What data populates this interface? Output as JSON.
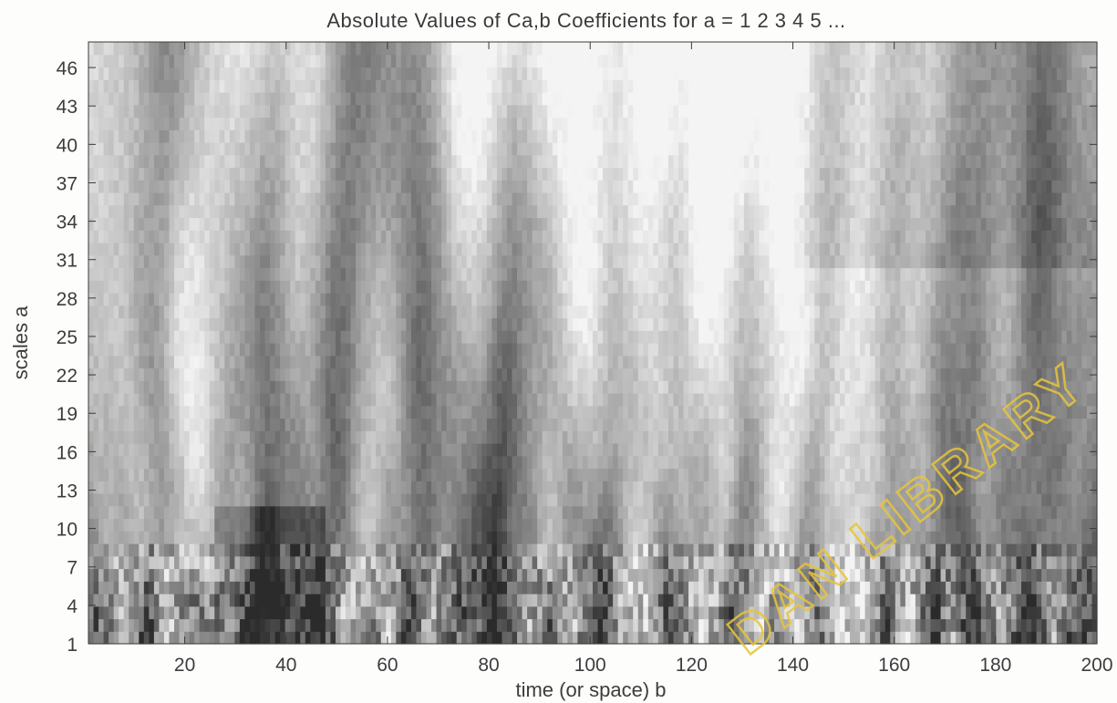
{
  "chart_data": {
    "type": "heatmap",
    "title": "Absolute Values of Ca,b Coefficients for a =  1 2 3 4 5 ...",
    "xlabel": "time (or space) b",
    "ylabel": "scales a",
    "xlim": [
      1,
      200
    ],
    "ylim": [
      1,
      48
    ],
    "x_ticks": [
      20,
      40,
      60,
      80,
      100,
      120,
      140,
      160,
      180,
      200
    ],
    "y_ticks": [
      1,
      4,
      7,
      10,
      13,
      16,
      19,
      22,
      25,
      28,
      31,
      34,
      37,
      40,
      43,
      46
    ],
    "colormap": "grayscale",
    "color_dark": "#2b2b2b",
    "color_light": "#f4f4f4",
    "grid": false,
    "bright_cones_apex_b": [
      8,
      16,
      28,
      52,
      60,
      68,
      88,
      96,
      107,
      112,
      122,
      133,
      142,
      150,
      155,
      163,
      172,
      182,
      192
    ],
    "dark_ridges_b": [
      14,
      36,
      50,
      66,
      83,
      104,
      117,
      131,
      146,
      160,
      170,
      176,
      188
    ]
  },
  "watermark": "DAN LIBRARY"
}
